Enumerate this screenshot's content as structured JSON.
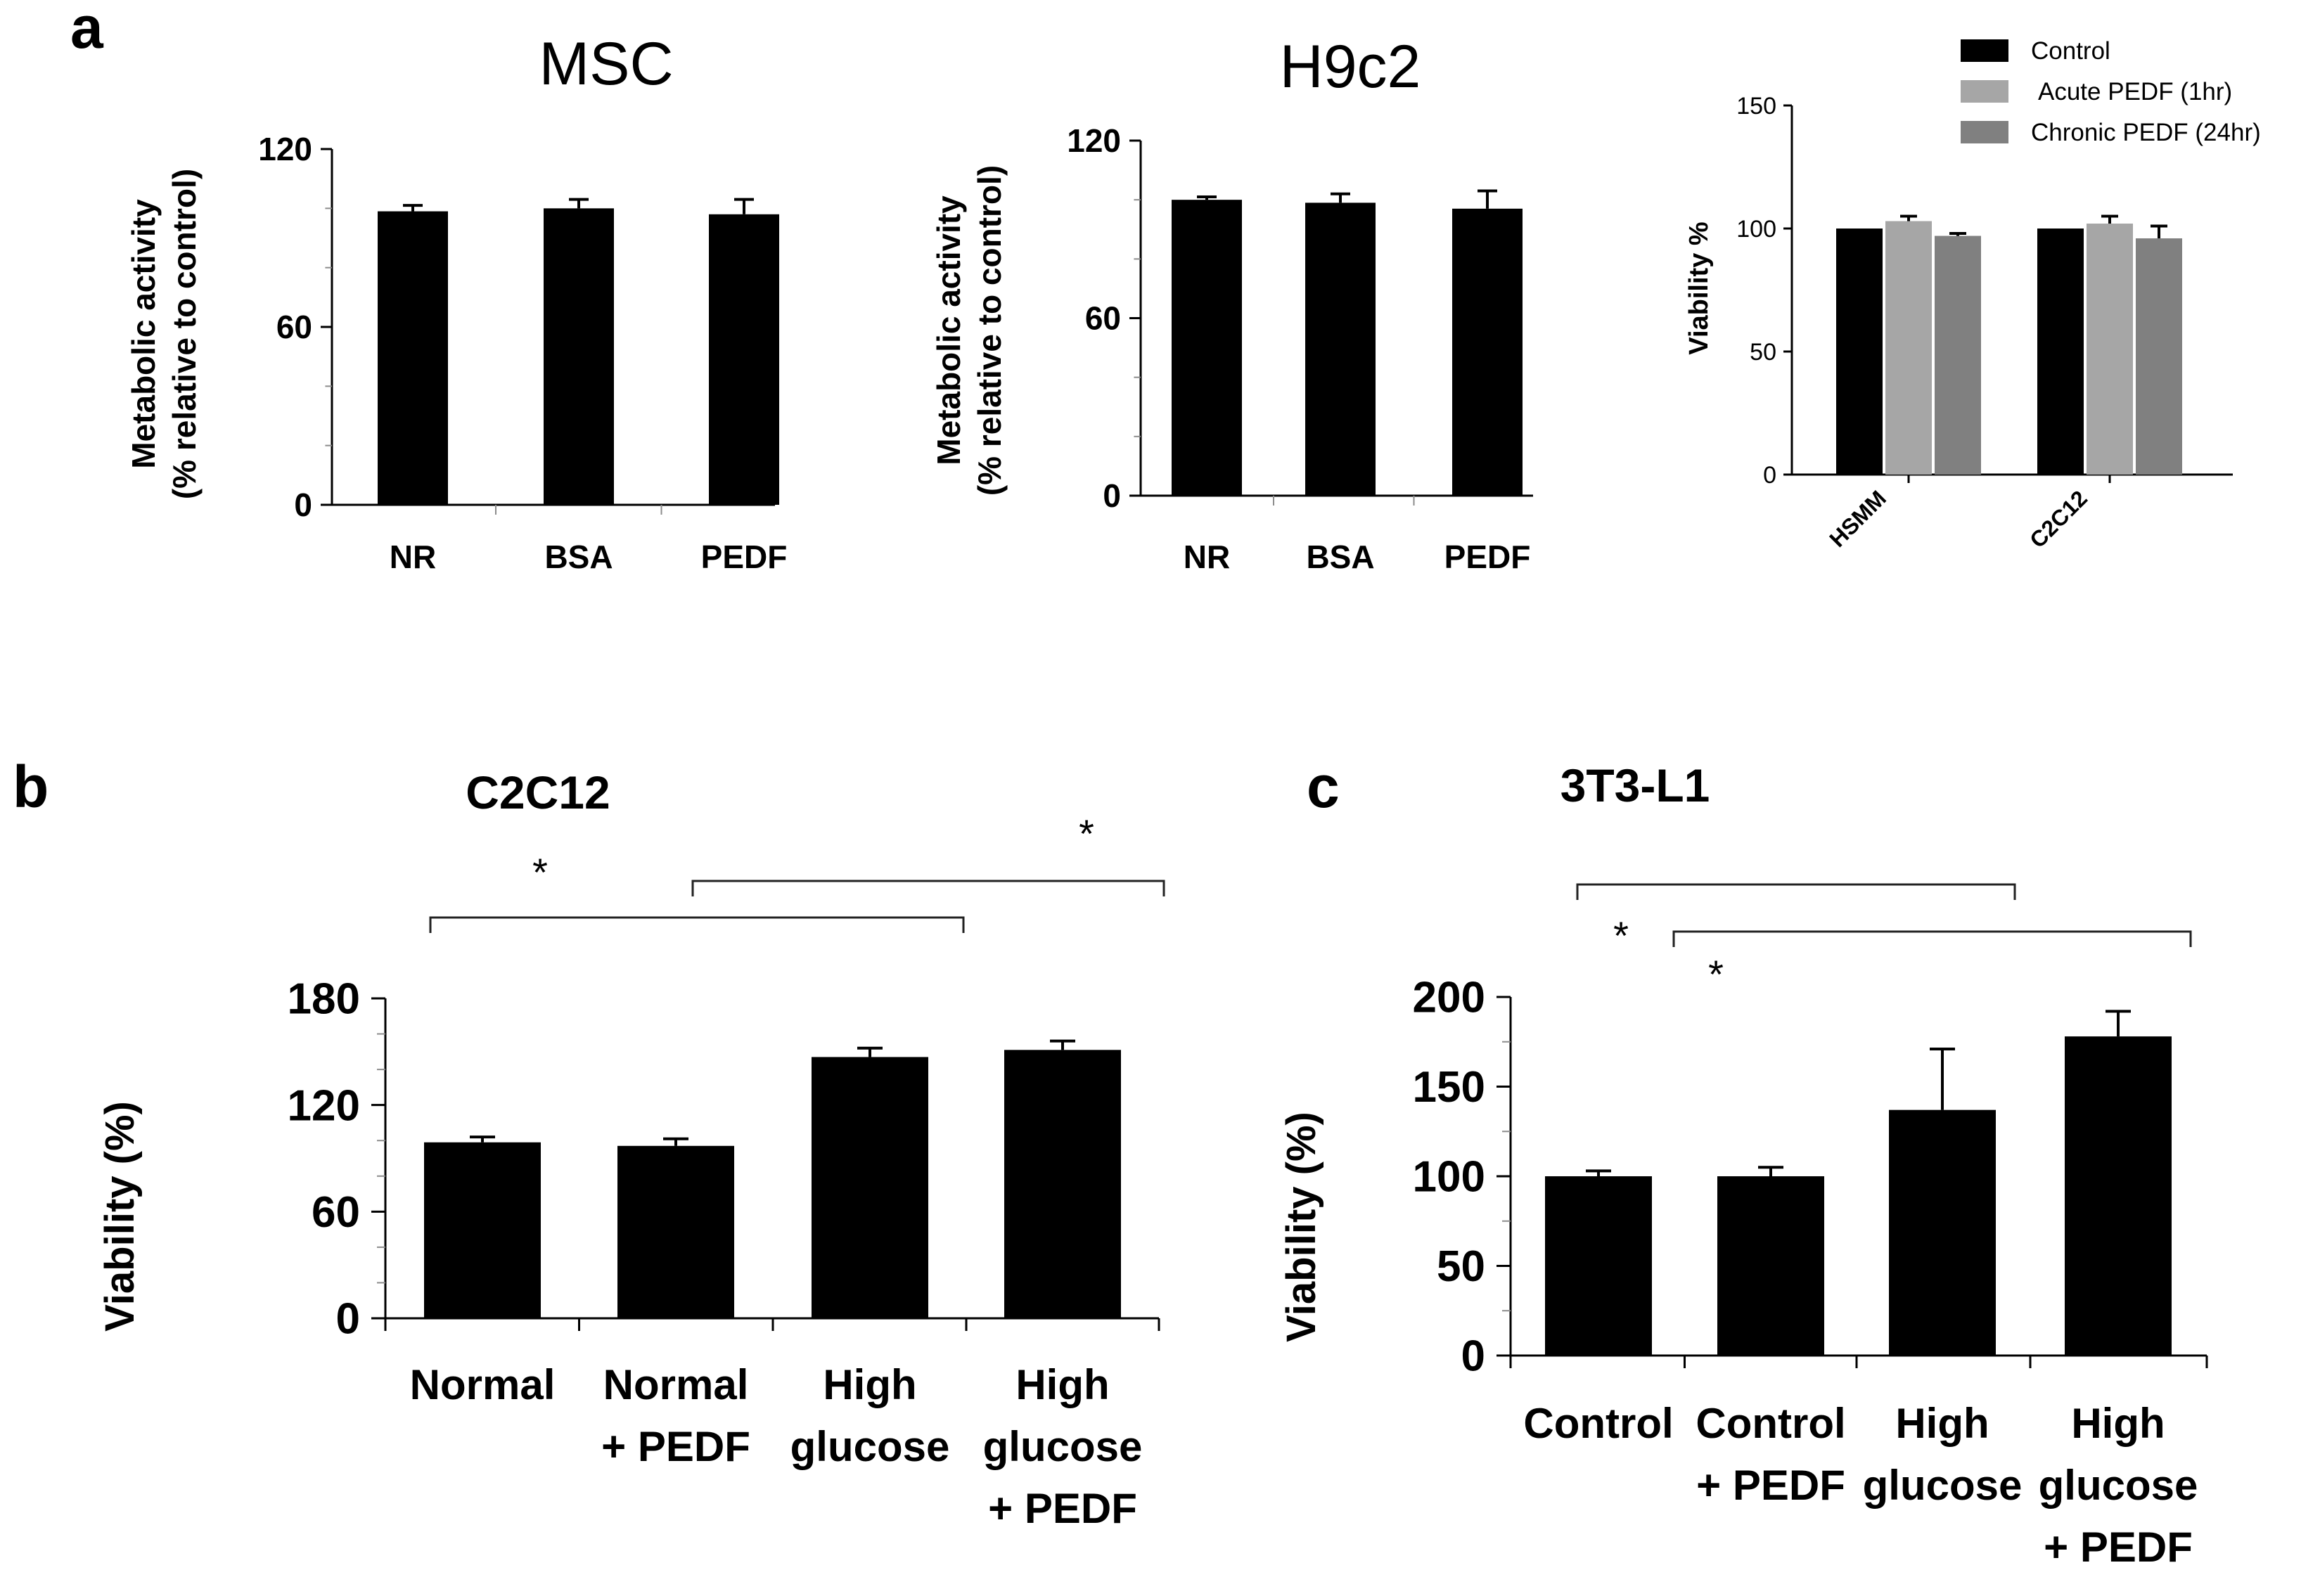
{
  "panel_labels": {
    "a": "a",
    "b": "b",
    "c": "c"
  },
  "colors": {
    "bar_black": "#000000",
    "bar_light_gray": "#a6a6a6",
    "bar_dark_gray": "#808080",
    "axis": "#000000",
    "minor_tick": "#8c8c8c",
    "background": "#ffffff"
  },
  "chart_data": [
    {
      "id": "msc",
      "type": "bar",
      "title": "MSC",
      "ylabel_line1": "Metabolic activity",
      "ylabel_line2": "(% relative to control)",
      "xlabel": "",
      "categories": [
        "NR",
        "BSA",
        "PEDF"
      ],
      "values": [
        99,
        100,
        98
      ],
      "errors": [
        2,
        3,
        5
      ],
      "ylim": [
        0,
        120
      ],
      "yticks": [
        0,
        60,
        120
      ],
      "yminor": [
        20,
        40,
        80,
        100
      ]
    },
    {
      "id": "h9c2",
      "type": "bar",
      "title": "H9c2",
      "ylabel_line1": "Metabolic activity",
      "ylabel_line2": "(% relative to control)",
      "xlabel": "",
      "categories": [
        "NR",
        "BSA",
        "PEDF"
      ],
      "values": [
        100,
        99,
        97
      ],
      "errors": [
        1,
        3,
        6
      ],
      "ylim": [
        0,
        120
      ],
      "yticks": [
        0,
        60,
        120
      ],
      "yminor": [
        20,
        40,
        80,
        100
      ]
    },
    {
      "id": "hsmm-c2c12",
      "type": "bar",
      "title": "",
      "ylabel": "Viability %",
      "xlabel": "",
      "categories": [
        "HSMM",
        "C2C12"
      ],
      "series": [
        {
          "name": "Control",
          "values": [
            100,
            100
          ],
          "errors": [
            0,
            0
          ]
        },
        {
          "name": "Acute PEDF (1hr)",
          "values": [
            103,
            102
          ],
          "errors": [
            2,
            3
          ]
        },
        {
          "name": "Chronic PEDF (24hr)",
          "values": [
            97,
            96
          ],
          "errors": [
            1,
            5
          ]
        }
      ],
      "ylim": [
        0,
        150
      ],
      "yticks": [
        0,
        50,
        100,
        150
      ],
      "legend_position": "top-right"
    },
    {
      "id": "c2c12",
      "type": "bar",
      "title": "C2C12",
      "ylabel": "Viability (%)",
      "xlabel": "",
      "categories": [
        [
          "Normal"
        ],
        [
          "Normal",
          "+ PEDF"
        ],
        [
          "High",
          "glucose"
        ],
        [
          "High",
          "glucose",
          "+ PEDF"
        ]
      ],
      "values": [
        99,
        97,
        147,
        151
      ],
      "errors": [
        3,
        4,
        5,
        5
      ],
      "ylim": [
        0,
        180
      ],
      "yticks": [
        0,
        60,
        120,
        180
      ],
      "yminor": [
        20,
        40,
        80,
        100,
        140,
        160
      ],
      "significance": [
        {
          "from": 0,
          "to": 2,
          "label": "*"
        },
        {
          "from": 1,
          "to": 3,
          "label": "*"
        }
      ]
    },
    {
      "id": "3t3-l1",
      "type": "bar",
      "title": "3T3-L1",
      "ylabel": "Viability (%)",
      "xlabel": "",
      "categories": [
        [
          "Control"
        ],
        [
          "Control",
          "+ PEDF"
        ],
        [
          "High",
          "glucose"
        ],
        [
          "High",
          "glucose",
          "+ PEDF"
        ]
      ],
      "values": [
        100,
        100,
        137,
        178
      ],
      "errors": [
        3,
        5,
        34,
        14
      ],
      "ylim": [
        0,
        200
      ],
      "yticks": [
        0,
        50,
        100,
        150,
        200
      ],
      "yminor": [
        25,
        75,
        125,
        175
      ],
      "significance": [
        {
          "from": 0,
          "to": 2,
          "label": "*"
        },
        {
          "from": 1,
          "to": 3,
          "label": "*"
        }
      ]
    }
  ]
}
